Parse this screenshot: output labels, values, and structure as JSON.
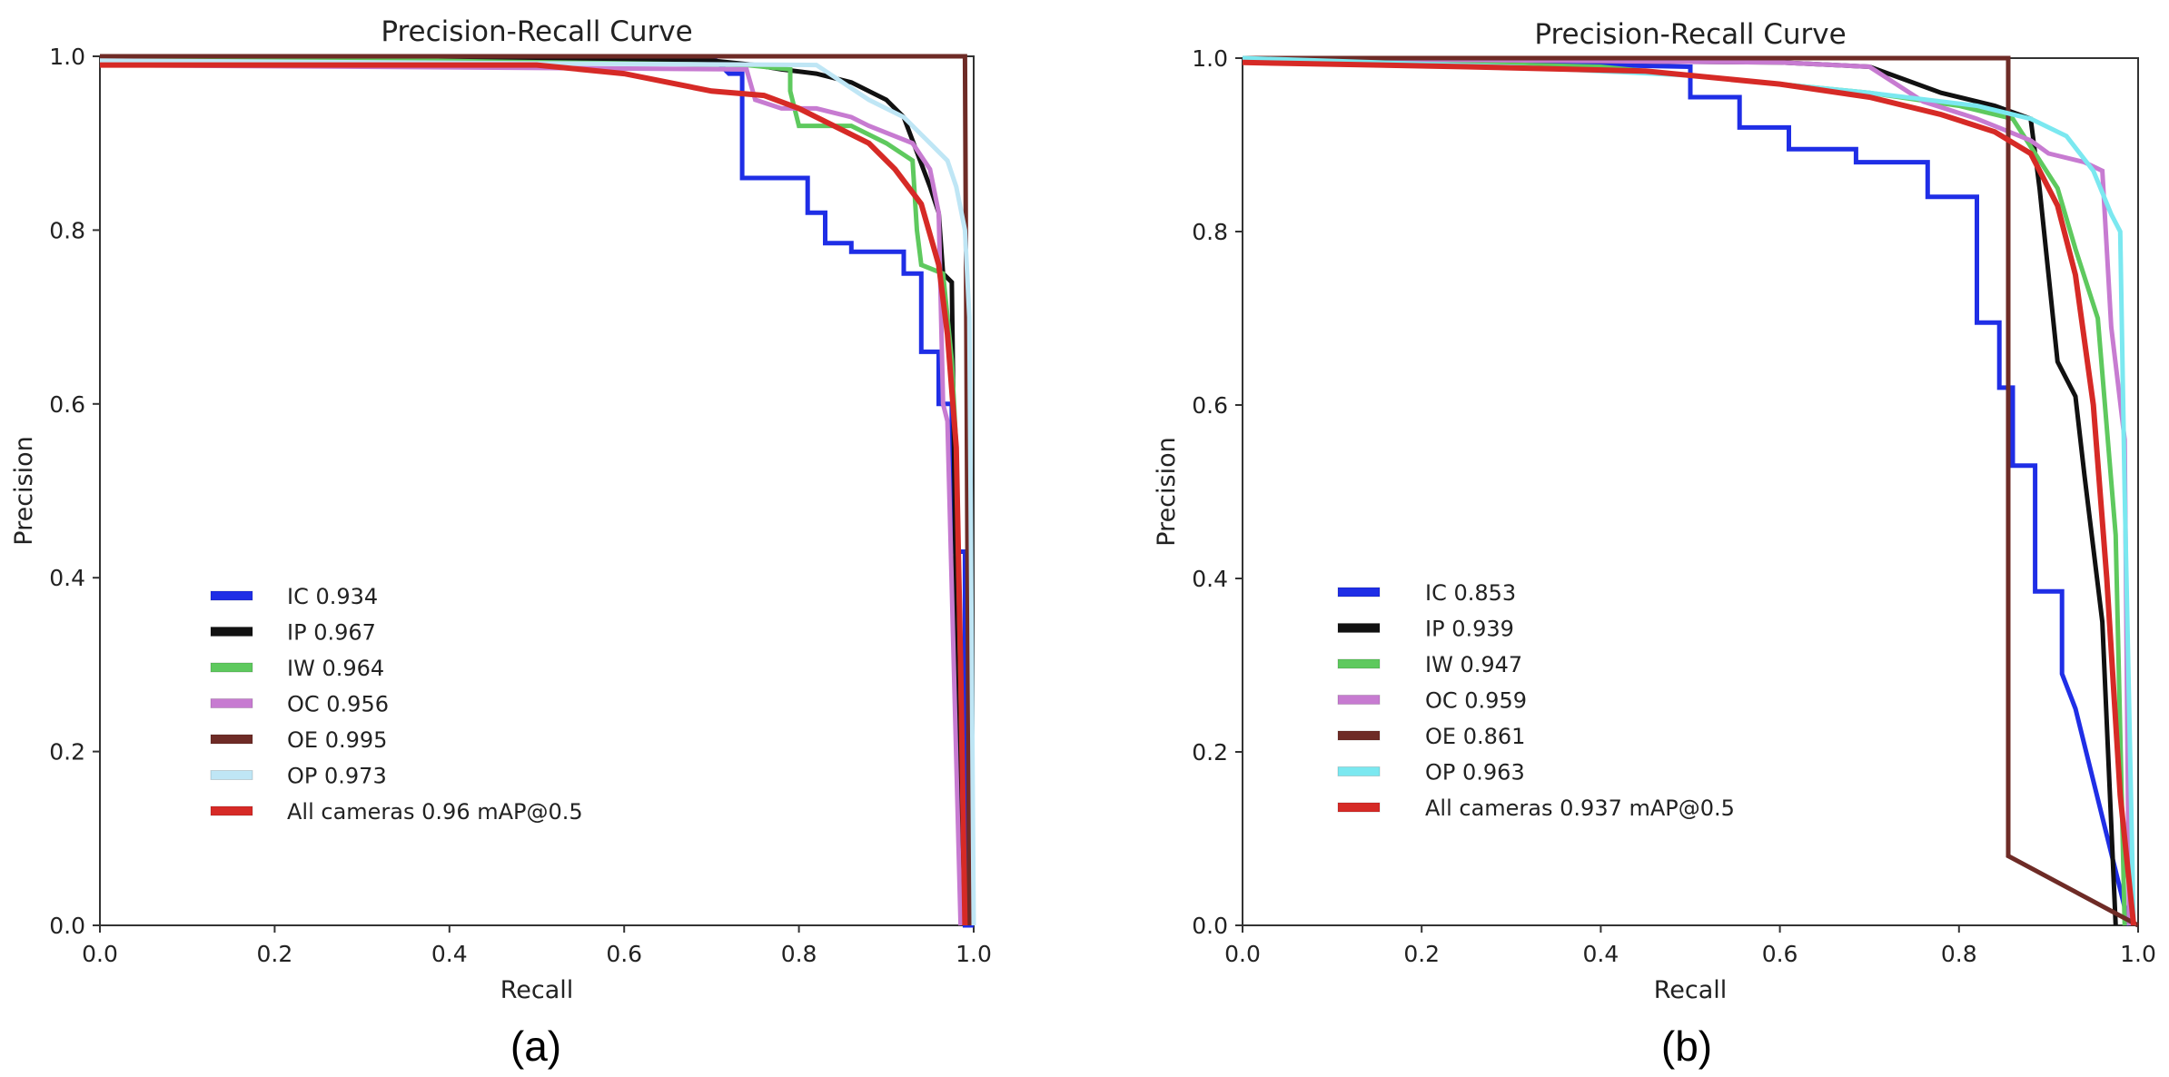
{
  "chart_data": [
    {
      "panel_label": "(a)",
      "type": "line",
      "title": "Precision-Recall Curve",
      "xlabel": "Recall",
      "ylabel": "Precision",
      "xlim": [
        0,
        1
      ],
      "ylim": [
        0,
        1
      ],
      "xticks": [
        "0.0",
        "0.2",
        "0.4",
        "0.6",
        "0.8",
        "1.0"
      ],
      "yticks": [
        "0.0",
        "0.2",
        "0.4",
        "0.6",
        "0.8",
        "1.0"
      ],
      "legend_position": "lower-left",
      "series": [
        {
          "name": "IC",
          "map": "0.934",
          "color": "#1f2ee6",
          "width": 5,
          "points": [
            [
              0,
              1.0
            ],
            [
              0.7,
              1.0
            ],
            [
              0.72,
              0.98
            ],
            [
              0.735,
              0.98
            ],
            [
              0.735,
              0.86
            ],
            [
              0.81,
              0.86
            ],
            [
              0.81,
              0.82
            ],
            [
              0.83,
              0.82
            ],
            [
              0.83,
              0.785
            ],
            [
              0.86,
              0.785
            ],
            [
              0.86,
              0.775
            ],
            [
              0.92,
              0.775
            ],
            [
              0.92,
              0.75
            ],
            [
              0.94,
              0.75
            ],
            [
              0.94,
              0.66
            ],
            [
              0.96,
              0.66
            ],
            [
              0.96,
              0.6
            ],
            [
              0.975,
              0.6
            ],
            [
              0.975,
              0.43
            ],
            [
              0.99,
              0.43
            ],
            [
              0.99,
              0.0
            ],
            [
              1.0,
              0.0
            ]
          ]
        },
        {
          "name": "IP",
          "map": "0.967",
          "color": "#111111",
          "width": 5,
          "points": [
            [
              0,
              1.0
            ],
            [
              0.7,
              0.995
            ],
            [
              0.75,
              0.99
            ],
            [
              0.78,
              0.985
            ],
            [
              0.82,
              0.98
            ],
            [
              0.86,
              0.97
            ],
            [
              0.9,
              0.95
            ],
            [
              0.92,
              0.93
            ],
            [
              0.95,
              0.85
            ],
            [
              0.96,
              0.82
            ],
            [
              0.965,
              0.75
            ],
            [
              0.975,
              0.74
            ],
            [
              0.98,
              0.35
            ],
            [
              0.99,
              0.0
            ]
          ]
        },
        {
          "name": "IW",
          "map": "0.964",
          "color": "#5ec95e",
          "width": 5,
          "points": [
            [
              0,
              1.0
            ],
            [
              0.74,
              0.99
            ],
            [
              0.79,
              0.985
            ],
            [
              0.79,
              0.96
            ],
            [
              0.8,
              0.92
            ],
            [
              0.86,
              0.92
            ],
            [
              0.9,
              0.9
            ],
            [
              0.93,
              0.88
            ],
            [
              0.935,
              0.8
            ],
            [
              0.94,
              0.76
            ],
            [
              0.965,
              0.75
            ],
            [
              0.975,
              0.65
            ],
            [
              0.98,
              0.55
            ],
            [
              0.99,
              0.0
            ]
          ]
        },
        {
          "name": "OC",
          "map": "0.956",
          "color": "#c77bd1",
          "width": 5,
          "points": [
            [
              0,
              0.99
            ],
            [
              0.74,
              0.985
            ],
            [
              0.75,
              0.95
            ],
            [
              0.78,
              0.94
            ],
            [
              0.82,
              0.94
            ],
            [
              0.86,
              0.93
            ],
            [
              0.88,
              0.92
            ],
            [
              0.93,
              0.9
            ],
            [
              0.95,
              0.87
            ],
            [
              0.96,
              0.82
            ],
            [
              0.965,
              0.6
            ],
            [
              0.97,
              0.58
            ],
            [
              0.985,
              0.0
            ]
          ]
        },
        {
          "name": "OE",
          "map": "0.995",
          "color": "#6e2b26",
          "width": 5,
          "points": [
            [
              0,
              1.0
            ],
            [
              0.99,
              1.0
            ],
            [
              0.995,
              0.0
            ]
          ]
        },
        {
          "name": "OP",
          "map": "0.973",
          "color": "#bfe6f5",
          "width": 5,
          "points": [
            [
              0,
              0.995
            ],
            [
              0.82,
              0.99
            ],
            [
              0.88,
              0.95
            ],
            [
              0.92,
              0.93
            ],
            [
              0.95,
              0.9
            ],
            [
              0.97,
              0.88
            ],
            [
              0.98,
              0.85
            ],
            [
              0.99,
              0.8
            ],
            [
              0.995,
              0.7
            ],
            [
              1.0,
              0.0
            ]
          ]
        },
        {
          "name": "All cameras",
          "map": "0.96 mAP@0.5",
          "color": "#d62a26",
          "width": 6,
          "points": [
            [
              0,
              0.99
            ],
            [
              0.5,
              0.99
            ],
            [
              0.6,
              0.98
            ],
            [
              0.7,
              0.96
            ],
            [
              0.76,
              0.955
            ],
            [
              0.8,
              0.94
            ],
            [
              0.84,
              0.92
            ],
            [
              0.88,
              0.9
            ],
            [
              0.91,
              0.87
            ],
            [
              0.94,
              0.83
            ],
            [
              0.96,
              0.76
            ],
            [
              0.97,
              0.68
            ],
            [
              0.98,
              0.55
            ],
            [
              0.985,
              0.3
            ],
            [
              0.99,
              0.0
            ]
          ]
        }
      ]
    },
    {
      "panel_label": "(b)",
      "type": "line",
      "title": "Precision-Recall Curve",
      "xlabel": "Recall",
      "ylabel": "Precision",
      "xlim": [
        0,
        1
      ],
      "ylim": [
        0,
        1
      ],
      "xticks": [
        "0.0",
        "0.2",
        "0.4",
        "0.6",
        "0.8",
        "1.0"
      ],
      "yticks": [
        "0.0",
        "0.2",
        "0.4",
        "0.6",
        "0.8",
        "1.0"
      ],
      "legend_position": "lower-left",
      "series": [
        {
          "name": "IC",
          "map": "0.853",
          "color": "#1f2ee6",
          "width": 5,
          "points": [
            [
              0,
              1.0
            ],
            [
              0.5,
              0.99
            ],
            [
              0.5,
              0.955
            ],
            [
              0.555,
              0.955
            ],
            [
              0.555,
              0.92
            ],
            [
              0.61,
              0.92
            ],
            [
              0.61,
              0.895
            ],
            [
              0.685,
              0.895
            ],
            [
              0.685,
              0.88
            ],
            [
              0.765,
              0.88
            ],
            [
              0.765,
              0.84
            ],
            [
              0.82,
              0.84
            ],
            [
              0.82,
              0.695
            ],
            [
              0.845,
              0.695
            ],
            [
              0.845,
              0.62
            ],
            [
              0.86,
              0.62
            ],
            [
              0.86,
              0.53
            ],
            [
              0.885,
              0.53
            ],
            [
              0.885,
              0.385
            ],
            [
              0.915,
              0.385
            ],
            [
              0.915,
              0.29
            ],
            [
              0.93,
              0.25
            ],
            [
              0.99,
              0.0
            ]
          ]
        },
        {
          "name": "IP",
          "map": "0.939",
          "color": "#111111",
          "width": 5,
          "points": [
            [
              0,
              1.0
            ],
            [
              0.6,
              0.995
            ],
            [
              0.7,
              0.99
            ],
            [
              0.78,
              0.96
            ],
            [
              0.84,
              0.945
            ],
            [
              0.88,
              0.93
            ],
            [
              0.89,
              0.85
            ],
            [
              0.9,
              0.75
            ],
            [
              0.91,
              0.65
            ],
            [
              0.93,
              0.61
            ],
            [
              0.94,
              0.52
            ],
            [
              0.96,
              0.35
            ],
            [
              0.975,
              0.0
            ]
          ]
        },
        {
          "name": "IW",
          "map": "0.947",
          "color": "#5ec95e",
          "width": 5,
          "points": [
            [
              0,
              1.0
            ],
            [
              0.4,
              0.99
            ],
            [
              0.55,
              0.975
            ],
            [
              0.7,
              0.96
            ],
            [
              0.8,
              0.945
            ],
            [
              0.86,
              0.93
            ],
            [
              0.91,
              0.85
            ],
            [
              0.93,
              0.78
            ],
            [
              0.955,
              0.7
            ],
            [
              0.975,
              0.45
            ],
            [
              0.985,
              0.0
            ]
          ]
        },
        {
          "name": "OC",
          "map": "0.959",
          "color": "#c77bd1",
          "width": 5,
          "points": [
            [
              0,
              1.0
            ],
            [
              0.6,
              0.995
            ],
            [
              0.7,
              0.99
            ],
            [
              0.76,
              0.95
            ],
            [
              0.82,
              0.93
            ],
            [
              0.88,
              0.905
            ],
            [
              0.9,
              0.89
            ],
            [
              0.94,
              0.88
            ],
            [
              0.96,
              0.87
            ],
            [
              0.97,
              0.69
            ],
            [
              0.985,
              0.56
            ],
            [
              0.99,
              0.0
            ]
          ]
        },
        {
          "name": "OE",
          "map": "0.861",
          "color": "#6e2b26",
          "width": 5,
          "points": [
            [
              0,
              1.0
            ],
            [
              0.855,
              1.0
            ],
            [
              0.855,
              0.08
            ],
            [
              1.0,
              0.0
            ]
          ]
        },
        {
          "name": "OP",
          "map": "0.963",
          "color": "#7be8f0",
          "width": 5,
          "points": [
            [
              0,
              1.0
            ],
            [
              0.3,
              0.99
            ],
            [
              0.5,
              0.98
            ],
            [
              0.7,
              0.96
            ],
            [
              0.82,
              0.945
            ],
            [
              0.88,
              0.93
            ],
            [
              0.92,
              0.91
            ],
            [
              0.95,
              0.87
            ],
            [
              0.97,
              0.82
            ],
            [
              0.98,
              0.8
            ],
            [
              0.985,
              0.5
            ],
            [
              0.995,
              0.0
            ]
          ]
        },
        {
          "name": "All cameras",
          "map": "0.937 mAP@0.5",
          "color": "#d62a26",
          "width": 6,
          "points": [
            [
              0,
              0.995
            ],
            [
              0.25,
              0.99
            ],
            [
              0.45,
              0.985
            ],
            [
              0.6,
              0.97
            ],
            [
              0.7,
              0.955
            ],
            [
              0.78,
              0.935
            ],
            [
              0.84,
              0.915
            ],
            [
              0.88,
              0.89
            ],
            [
              0.91,
              0.83
            ],
            [
              0.93,
              0.75
            ],
            [
              0.95,
              0.6
            ],
            [
              0.965,
              0.4
            ],
            [
              0.98,
              0.15
            ],
            [
              0.995,
              0.0
            ]
          ]
        }
      ]
    }
  ]
}
